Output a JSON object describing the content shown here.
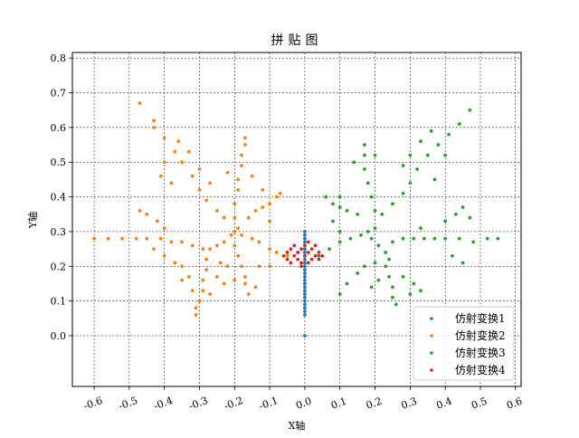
{
  "chart_data": {
    "type": "scatter",
    "title": "拼贴图",
    "xlabel": "X轴",
    "ylabel": "Y轴",
    "xlim": [
      -0.662,
      0.616
    ],
    "ylim": [
      -0.146,
      0.816
    ],
    "xticks": [
      "-0.6",
      "-0.5",
      "-0.4",
      "-0.3",
      "-0.2",
      "-0.1",
      "0.0",
      "0.1",
      "0.2",
      "0.3",
      "0.4",
      "0.5",
      "0.6"
    ],
    "xtick_values": [
      -0.6,
      -0.5,
      -0.4,
      -0.3,
      -0.2,
      -0.1,
      0.0,
      0.1,
      0.2,
      0.3,
      0.4,
      0.5,
      0.6
    ],
    "yticks": [
      "0.0",
      "0.1",
      "0.2",
      "0.3",
      "0.4",
      "0.5",
      "0.6",
      "0.7",
      "0.8"
    ],
    "ytick_values": [
      0.0,
      0.1,
      0.2,
      0.3,
      0.4,
      0.5,
      0.6,
      0.7,
      0.8
    ],
    "grid": true,
    "grid_style": "dashed",
    "legend_position": "lower-right",
    "series": [
      {
        "name": "仿射变换1",
        "color": "#1f77b4",
        "points": [
          [
            0,
            0
          ],
          [
            0,
            0.06
          ],
          [
            0,
            0.07
          ],
          [
            0,
            0.08
          ],
          [
            0,
            0.09
          ],
          [
            0,
            0.1
          ],
          [
            0,
            0.11
          ],
          [
            0,
            0.12
          ],
          [
            0,
            0.13
          ],
          [
            0,
            0.14
          ],
          [
            0,
            0.15
          ],
          [
            0,
            0.16
          ],
          [
            0,
            0.17
          ],
          [
            0,
            0.18
          ],
          [
            0,
            0.19
          ],
          [
            0,
            0.2
          ],
          [
            0,
            0.21
          ],
          [
            0,
            0.22
          ],
          [
            0,
            0.23
          ],
          [
            0,
            0.24
          ],
          [
            0,
            0.25
          ],
          [
            0,
            0.26
          ],
          [
            0,
            0.27
          ],
          [
            0,
            0.28
          ],
          [
            0,
            0.29
          ],
          [
            0,
            0.3
          ]
        ]
      },
      {
        "name": "仿射变换2",
        "color": "#ff7f0e",
        "points": [
          [
            -0.05,
            0.23
          ],
          [
            -0.08,
            0.24
          ],
          [
            -0.1,
            0.25
          ],
          [
            -0.13,
            0.27
          ],
          [
            -0.15,
            0.28
          ],
          [
            -0.18,
            0.29
          ],
          [
            -0.2,
            0.3
          ],
          [
            -0.19,
            0.31
          ],
          [
            -0.21,
            0.29
          ],
          [
            -0.23,
            0.27
          ],
          [
            -0.25,
            0.26
          ],
          [
            -0.27,
            0.25
          ],
          [
            -0.29,
            0.25
          ],
          [
            -0.32,
            0.26
          ],
          [
            -0.35,
            0.27
          ],
          [
            -0.38,
            0.27
          ],
          [
            -0.41,
            0.28
          ],
          [
            -0.45,
            0.28
          ],
          [
            -0.48,
            0.28
          ],
          [
            -0.52,
            0.28
          ],
          [
            -0.56,
            0.28
          ],
          [
            -0.6,
            0.28
          ],
          [
            -0.42,
            0.33
          ],
          [
            -0.45,
            0.35
          ],
          [
            -0.47,
            0.36
          ],
          [
            -0.4,
            0.31
          ],
          [
            -0.4,
            0.23
          ],
          [
            -0.37,
            0.21
          ],
          [
            -0.35,
            0.2
          ],
          [
            -0.43,
            0.25
          ],
          [
            -0.28,
            0.22
          ],
          [
            -0.28,
            0.19
          ],
          [
            -0.29,
            0.16
          ],
          [
            -0.29,
            0.13
          ],
          [
            -0.3,
            0.1
          ],
          [
            -0.31,
            0.08
          ],
          [
            -0.31,
            0.06
          ],
          [
            -0.33,
            0.17
          ],
          [
            -0.35,
            0.16
          ],
          [
            -0.25,
            0.17
          ],
          [
            -0.23,
            0.15
          ],
          [
            -0.32,
            0.13
          ],
          [
            -0.27,
            0.12
          ],
          [
            -0.23,
            0.34
          ],
          [
            -0.25,
            0.36
          ],
          [
            -0.28,
            0.39
          ],
          [
            -0.3,
            0.42
          ],
          [
            -0.32,
            0.46
          ],
          [
            -0.35,
            0.5
          ],
          [
            -0.37,
            0.53
          ],
          [
            -0.4,
            0.57
          ],
          [
            -0.43,
            0.62
          ],
          [
            -0.47,
            0.67
          ],
          [
            -0.33,
            0.53
          ],
          [
            -0.36,
            0.56
          ],
          [
            -0.4,
            0.5
          ],
          [
            -0.43,
            0.6
          ],
          [
            -0.38,
            0.44
          ],
          [
            -0.41,
            0.46
          ],
          [
            -0.27,
            0.44
          ],
          [
            -0.3,
            0.48
          ],
          [
            -0.2,
            0.34
          ],
          [
            -0.2,
            0.38
          ],
          [
            -0.19,
            0.42
          ],
          [
            -0.19,
            0.45
          ],
          [
            -0.18,
            0.49
          ],
          [
            -0.18,
            0.52
          ],
          [
            -0.17,
            0.55
          ],
          [
            -0.17,
            0.57
          ],
          [
            -0.22,
            0.47
          ],
          [
            -0.15,
            0.46
          ],
          [
            -0.16,
            0.34
          ],
          [
            -0.14,
            0.36
          ],
          [
            -0.12,
            0.37
          ],
          [
            -0.1,
            0.38
          ],
          [
            -0.08,
            0.4
          ],
          [
            -0.07,
            0.41
          ],
          [
            -0.12,
            0.42
          ],
          [
            -0.1,
            0.33
          ],
          [
            -0.2,
            0.26
          ],
          [
            -0.19,
            0.23
          ],
          [
            -0.18,
            0.2
          ],
          [
            -0.17,
            0.17
          ],
          [
            -0.17,
            0.15
          ],
          [
            -0.16,
            0.12
          ],
          [
            -0.22,
            0.2
          ],
          [
            -0.24,
            0.21
          ],
          [
            -0.13,
            0.2
          ],
          [
            -0.1,
            0.2
          ],
          [
            -0.14,
            0.14
          ],
          [
            -0.2,
            0.16
          ]
        ]
      },
      {
        "name": "仿射变换3",
        "color": "#2ca02c",
        "points": [
          [
            0.04,
            0.23
          ],
          [
            0.07,
            0.25
          ],
          [
            0.1,
            0.27
          ],
          [
            0.13,
            0.28
          ],
          [
            0.16,
            0.29
          ],
          [
            0.18,
            0.3
          ],
          [
            0.2,
            0.31
          ],
          [
            0.19,
            0.28
          ],
          [
            0.21,
            0.26
          ],
          [
            0.23,
            0.24
          ],
          [
            0.24,
            0.22
          ],
          [
            0.23,
            0.2
          ],
          [
            0.24,
            0.17
          ],
          [
            0.25,
            0.14
          ],
          [
            0.25,
            0.11
          ],
          [
            0.26,
            0.09
          ],
          [
            0.21,
            0.16
          ],
          [
            0.19,
            0.14
          ],
          [
            0.28,
            0.17
          ],
          [
            0.31,
            0.15
          ],
          [
            0.33,
            0.13
          ],
          [
            0.3,
            0.12
          ],
          [
            0.17,
            0.2
          ],
          [
            0.15,
            0.18
          ],
          [
            0.12,
            0.15
          ],
          [
            0.1,
            0.12
          ],
          [
            0.2,
            0.21
          ],
          [
            0.25,
            0.27
          ],
          [
            0.28,
            0.28
          ],
          [
            0.31,
            0.28
          ],
          [
            0.34,
            0.28
          ],
          [
            0.37,
            0.28
          ],
          [
            0.4,
            0.28
          ],
          [
            0.44,
            0.28
          ],
          [
            0.48,
            0.27
          ],
          [
            0.52,
            0.28
          ],
          [
            0.55,
            0.28
          ],
          [
            0.4,
            0.33
          ],
          [
            0.43,
            0.35
          ],
          [
            0.45,
            0.37
          ],
          [
            0.47,
            0.34
          ],
          [
            0.42,
            0.23
          ],
          [
            0.45,
            0.21
          ],
          [
            0.33,
            0.31
          ],
          [
            0.22,
            0.35
          ],
          [
            0.25,
            0.38
          ],
          [
            0.28,
            0.41
          ],
          [
            0.3,
            0.44
          ],
          [
            0.32,
            0.48
          ],
          [
            0.35,
            0.52
          ],
          [
            0.38,
            0.55
          ],
          [
            0.41,
            0.58
          ],
          [
            0.44,
            0.61
          ],
          [
            0.47,
            0.65
          ],
          [
            0.33,
            0.56
          ],
          [
            0.36,
            0.59
          ],
          [
            0.4,
            0.52
          ],
          [
            0.28,
            0.49
          ],
          [
            0.3,
            0.52
          ],
          [
            0.37,
            0.45
          ],
          [
            0.2,
            0.36
          ],
          [
            0.19,
            0.4
          ],
          [
            0.18,
            0.44
          ],
          [
            0.17,
            0.48
          ],
          [
            0.17,
            0.52
          ],
          [
            0.17,
            0.55
          ],
          [
            0.14,
            0.5
          ],
          [
            0.2,
            0.52
          ],
          [
            0.15,
            0.35
          ],
          [
            0.12,
            0.36
          ],
          [
            0.1,
            0.37
          ],
          [
            0.08,
            0.38
          ],
          [
            0.06,
            0.4
          ],
          [
            0.1,
            0.4
          ],
          [
            0.08,
            0.33
          ],
          [
            0.1,
            0.3
          ]
        ]
      },
      {
        "name": "仿射变换4",
        "color": "#d62728",
        "points": [
          [
            -0.06,
            0.23
          ],
          [
            -0.05,
            0.22
          ],
          [
            -0.05,
            0.24
          ],
          [
            -0.04,
            0.25
          ],
          [
            -0.04,
            0.21
          ],
          [
            -0.03,
            0.23
          ],
          [
            -0.03,
            0.26
          ],
          [
            -0.02,
            0.22
          ],
          [
            -0.02,
            0.24
          ],
          [
            -0.01,
            0.25
          ],
          [
            -0.01,
            0.21
          ],
          [
            0,
            0.23
          ],
          [
            0,
            0.26
          ],
          [
            0.01,
            0.24
          ],
          [
            0.01,
            0.21
          ],
          [
            0.02,
            0.22
          ],
          [
            0.02,
            0.25
          ],
          [
            0.03,
            0.23
          ],
          [
            0.03,
            0.26
          ],
          [
            0.04,
            0.22
          ],
          [
            0.04,
            0.24
          ],
          [
            0.05,
            0.23
          ],
          [
            -0.01,
            0.2
          ],
          [
            0.01,
            0.27
          ]
        ]
      }
    ]
  }
}
